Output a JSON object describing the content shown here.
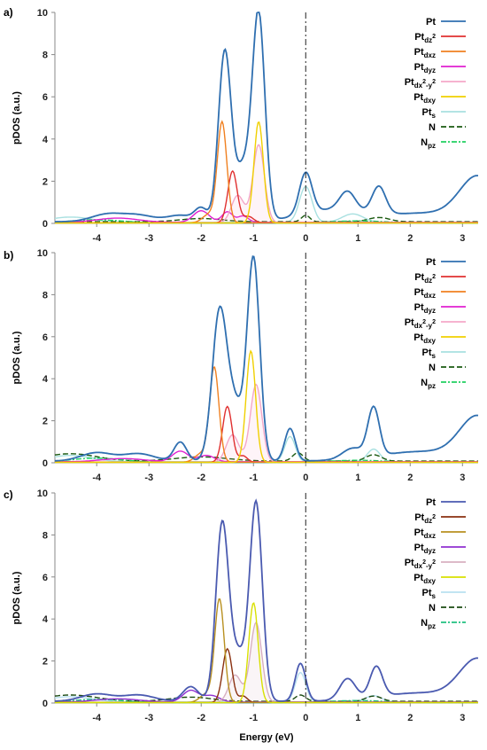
{
  "figure": {
    "xlabel": "Energy (eV)"
  },
  "legend_entries": [
    {
      "base": "Pt",
      "sub": "",
      "sup": ""
    },
    {
      "base": "Pt",
      "sub": "dz",
      "sup": "2"
    },
    {
      "base": "Pt",
      "sub": "dxz",
      "sup": ""
    },
    {
      "base": "Pt",
      "sub": "dyz",
      "sup": ""
    },
    {
      "base": "Pt",
      "sub": "dx",
      "sup": "2",
      "sub2": "-y",
      "sup2": "2"
    },
    {
      "base": "Pt",
      "sub": "dxy",
      "sup": ""
    },
    {
      "base": "Pt",
      "sub": "s",
      "sup": ""
    },
    {
      "base": "N",
      "sub": "",
      "sup": ""
    },
    {
      "base": "N",
      "sub": "pz",
      "sup": ""
    }
  ],
  "chart_data": [
    {
      "panel": "a)",
      "type": "line",
      "xlim": [
        -4.8,
        3.3
      ],
      "ylim": [
        0,
        10
      ],
      "xticks": [
        -4,
        -3,
        -2,
        -1,
        0,
        1,
        2,
        3
      ],
      "yticks": [
        0,
        2,
        4,
        6,
        8,
        10
      ],
      "ylabel": "pDOS (a.u.)",
      "fermi": 0,
      "colors": [
        "#2f6fb0",
        "#e03030",
        "#f08020",
        "#e020d0",
        "#f4a8c8",
        "#f0d000",
        "#a8e0e0",
        "#1a5a10",
        "#20d060"
      ],
      "peaks": [
        [
          [
            -3.8,
            0.35,
            0.3
          ],
          [
            -3.2,
            0.3,
            0.3
          ],
          [
            -2.4,
            0.3,
            0.25
          ],
          [
            -1.55,
            8.0,
            0.12
          ],
          [
            -0.9,
            9.7,
            0.12
          ],
          [
            -1.2,
            2.5,
            0.15
          ],
          [
            -2.0,
            0.6,
            0.12
          ],
          [
            0.0,
            1.95,
            0.12
          ],
          [
            0.8,
            0.9,
            0.15
          ],
          [
            1.4,
            1.3,
            0.13
          ],
          [
            3.3,
            2.0,
            0.35
          ],
          [
            0.5,
            0.55,
            0.6
          ],
          [
            2.3,
            0.4,
            0.8
          ]
        ],
        [
          [
            -1.4,
            2.45,
            0.09
          ],
          [
            -1.1,
            0.3,
            0.1
          ]
        ],
        [
          [
            -1.6,
            4.75,
            0.09
          ],
          [
            -1.85,
            0.4,
            0.12
          ]
        ],
        [
          [
            -2.0,
            0.55,
            0.15
          ],
          [
            -3.6,
            0.2,
            0.4
          ],
          [
            -1.5,
            0.5,
            0.1
          ],
          [
            -1.2,
            0.3,
            0.1
          ]
        ],
        [
          [
            -0.9,
            3.7,
            0.11
          ],
          [
            -1.3,
            1.3,
            0.12
          ]
        ],
        [
          [
            -0.9,
            4.8,
            0.09
          ]
        ],
        [
          [
            0.0,
            1.7,
            0.12
          ],
          [
            0.9,
            0.4,
            0.2
          ],
          [
            -4.5,
            0.25,
            0.4
          ]
        ],
        [
          [
            0.0,
            0.3,
            0.08
          ],
          [
            1.4,
            0.2,
            0.2
          ],
          [
            -2.0,
            0.15,
            0.4
          ]
        ],
        [
          [
            -4.0,
            0.15,
            0.5
          ],
          [
            1.0,
            0.1,
            0.5
          ]
        ]
      ]
    },
    {
      "panel": "b)",
      "type": "line",
      "xlim": [
        -4.8,
        3.3
      ],
      "ylim": [
        0,
        10
      ],
      "xticks": [
        -4,
        -3,
        -2,
        -1,
        0,
        1,
        2,
        3
      ],
      "yticks": [
        0,
        2,
        4,
        6,
        8,
        10
      ],
      "ylabel": "pDOS (a.u.)",
      "fermi": 0,
      "colors": [
        "#2f6fb0",
        "#e03030",
        "#f08020",
        "#e020d0",
        "#f4a8c8",
        "#f0d000",
        "#a8e0e0",
        "#1a5a10",
        "#20d060"
      ],
      "peaks": [
        [
          [
            -4.0,
            0.4,
            0.3
          ],
          [
            -3.2,
            0.35,
            0.3
          ],
          [
            -2.4,
            0.9,
            0.12
          ],
          [
            -1.65,
            7.0,
            0.14
          ],
          [
            -1.0,
            9.6,
            0.12
          ],
          [
            -1.35,
            2.5,
            0.15
          ],
          [
            -0.3,
            1.55,
            0.1
          ],
          [
            1.3,
            2.3,
            0.11
          ],
          [
            0.9,
            0.5,
            0.2
          ],
          [
            3.3,
            2.0,
            0.35
          ],
          [
            2.2,
            0.45,
            0.8
          ]
        ],
        [
          [
            -1.5,
            2.65,
            0.09
          ],
          [
            -1.2,
            0.3,
            0.08
          ]
        ],
        [
          [
            -1.75,
            4.5,
            0.09
          ],
          [
            -2.0,
            0.4,
            0.12
          ]
        ],
        [
          [
            -2.4,
            0.5,
            0.15
          ],
          [
            -1.9,
            0.3,
            0.15
          ],
          [
            -3.5,
            0.15,
            0.4
          ]
        ],
        [
          [
            -0.95,
            3.7,
            0.11
          ],
          [
            -1.4,
            1.3,
            0.12
          ]
        ],
        [
          [
            -1.05,
            5.3,
            0.09
          ]
        ],
        [
          [
            -0.3,
            1.2,
            0.1
          ],
          [
            1.3,
            0.6,
            0.12
          ],
          [
            -4.5,
            0.3,
            0.4
          ]
        ],
        [
          [
            -0.15,
            0.4,
            0.1
          ],
          [
            1.3,
            0.3,
            0.15
          ],
          [
            -4.5,
            0.35,
            0.5
          ],
          [
            -2.0,
            0.2,
            0.5
          ]
        ],
        [
          [
            -4.0,
            0.2,
            0.5
          ],
          [
            1.0,
            0.1,
            0.5
          ]
        ]
      ]
    },
    {
      "panel": "c)",
      "type": "line",
      "xlim": [
        -4.8,
        3.3
      ],
      "ylim": [
        0,
        10
      ],
      "xticks": [
        -4,
        -3,
        -2,
        -1,
        0,
        1,
        2,
        3
      ],
      "yticks": [
        0,
        2,
        4,
        6,
        8,
        10
      ],
      "ylabel": "pDOS (a.u.)",
      "fermi": 0,
      "colors": [
        "#4a5ab0",
        "#8a3010",
        "#b89020",
        "#9030d0",
        "#d8b0c0",
        "#d8e000",
        "#b8e0f0",
        "#1a4a10",
        "#20c080"
      ],
      "peaks": [
        [
          [
            -4.0,
            0.35,
            0.3
          ],
          [
            -3.2,
            0.3,
            0.3
          ],
          [
            -2.2,
            0.7,
            0.15
          ],
          [
            -1.6,
            8.3,
            0.12
          ],
          [
            -0.95,
            9.4,
            0.12
          ],
          [
            -1.3,
            2.2,
            0.15
          ],
          [
            -0.1,
            1.8,
            0.1
          ],
          [
            0.8,
            1.0,
            0.15
          ],
          [
            1.35,
            1.45,
            0.12
          ],
          [
            3.3,
            1.9,
            0.35
          ],
          [
            2.2,
            0.4,
            0.8
          ]
        ],
        [
          [
            -1.5,
            2.55,
            0.09
          ],
          [
            -1.2,
            0.3,
            0.08
          ]
        ],
        [
          [
            -1.65,
            4.9,
            0.09
          ],
          [
            -1.9,
            0.4,
            0.12
          ]
        ],
        [
          [
            -2.2,
            0.55,
            0.15
          ],
          [
            -1.8,
            0.3,
            0.15
          ],
          [
            -3.6,
            0.15,
            0.4
          ]
        ],
        [
          [
            -0.95,
            3.8,
            0.11
          ],
          [
            -1.35,
            1.3,
            0.12
          ]
        ],
        [
          [
            -1.0,
            4.75,
            0.09
          ]
        ],
        [
          [
            -0.1,
            1.4,
            0.1
          ],
          [
            1.3,
            0.3,
            0.15
          ],
          [
            -4.5,
            0.25,
            0.4
          ]
        ],
        [
          [
            -0.1,
            0.3,
            0.1
          ],
          [
            1.3,
            0.25,
            0.15
          ],
          [
            -4.5,
            0.3,
            0.5
          ],
          [
            -2.2,
            0.2,
            0.4
          ]
        ],
        [
          [
            -4.0,
            0.15,
            0.5
          ],
          [
            1.0,
            0.1,
            0.5
          ]
        ]
      ]
    }
  ]
}
